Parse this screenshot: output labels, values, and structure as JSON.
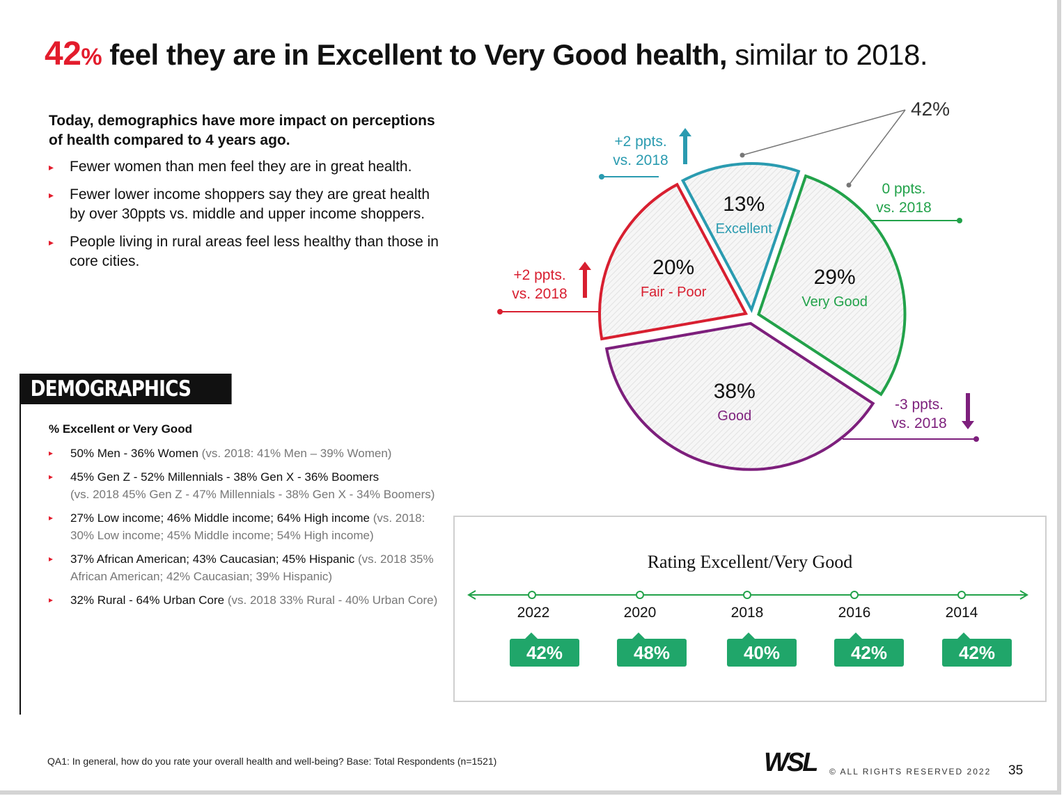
{
  "headline": {
    "pct_number": "42",
    "pct_symbol": "%",
    "bold_text": "feel they are in Excellent to Very Good health,",
    "light_text": "similar to 2018."
  },
  "intro": {
    "lead": "Today, demographics have more impact on perceptions of health compared to 4 years ago.",
    "bullets": [
      "Fewer women than men feel they are in great health.",
      "Fewer lower income shoppers say they are great health by over 30ppts vs. middle and upper income shoppers.",
      "People living in rural areas feel less healthy than those in core cities."
    ]
  },
  "demographics": {
    "title": "DEMOGRAPHICS MATTER",
    "subtitle": "% Excellent or Very Good",
    "items": [
      {
        "current": "50% Men - 36% Women",
        "prior": "(vs. 2018: 41% Men – 39% Women)"
      },
      {
        "current": "45% Gen Z - 52% Millennials - 38% Gen X - 36% Boomers",
        "prior": "(vs. 2018 45% Gen Z - 47% Millennials - 38% Gen X - 34% Boomers)"
      },
      {
        "current": "27% Low income; 46% Middle income; 64% High income",
        "prior": "(vs. 2018: 30% Low income; 45% Middle income; 54% High income)"
      },
      {
        "current": "37% African American; 43% Caucasian; 45% Hispanic",
        "prior": "(vs. 2018 35% African American; 42% Caucasian; 39% Hispanic)"
      },
      {
        "current": "32% Rural - 64% Urban Core",
        "prior": "(vs. 2018 33% Rural - 40% Urban Core)"
      }
    ]
  },
  "chart_data": {
    "type": "pie",
    "title": "",
    "slices": [
      {
        "label": "Excellent",
        "pct_text": "13%",
        "value": 13,
        "color": "#2a9bb0",
        "change_line1": "+2 ppts.",
        "change_line2": "vs. 2018",
        "direction": "up"
      },
      {
        "label": "Very Good",
        "pct_text": "29%",
        "value": 29,
        "color": "#22a24a",
        "change_line1": "0 ppts.",
        "change_line2": "vs. 2018",
        "direction": "none"
      },
      {
        "label": "Good",
        "pct_text": "38%",
        "value": 38,
        "color": "#7d1f7c",
        "change_line1": "-3 ppts.",
        "change_line2": "vs. 2018",
        "direction": "down"
      },
      {
        "label": "Fair - Poor",
        "pct_text": "20%",
        "value": 20,
        "color": "#d81f30",
        "change_line1": "+2 ppts.",
        "change_line2": "vs. 2018",
        "direction": "up"
      }
    ],
    "combined_label": "42%"
  },
  "timeline": {
    "title": "Rating Excellent/Very Good",
    "points": [
      {
        "year": "2022",
        "value": "42%"
      },
      {
        "year": "2020",
        "value": "48%"
      },
      {
        "year": "2018",
        "value": "40%"
      },
      {
        "year": "2016",
        "value": "42%"
      },
      {
        "year": "2014",
        "value": "42%"
      }
    ],
    "line_color": "#22a24a",
    "badge_color": "#20a66a"
  },
  "footer": {
    "footnote": "QA1: In general, how do you rate your overall health and well-being? Base: Total Respondents (n=1521)",
    "logo": "WSL",
    "rights": "© ALL RIGHTS RESERVED 2022",
    "page": "35"
  }
}
